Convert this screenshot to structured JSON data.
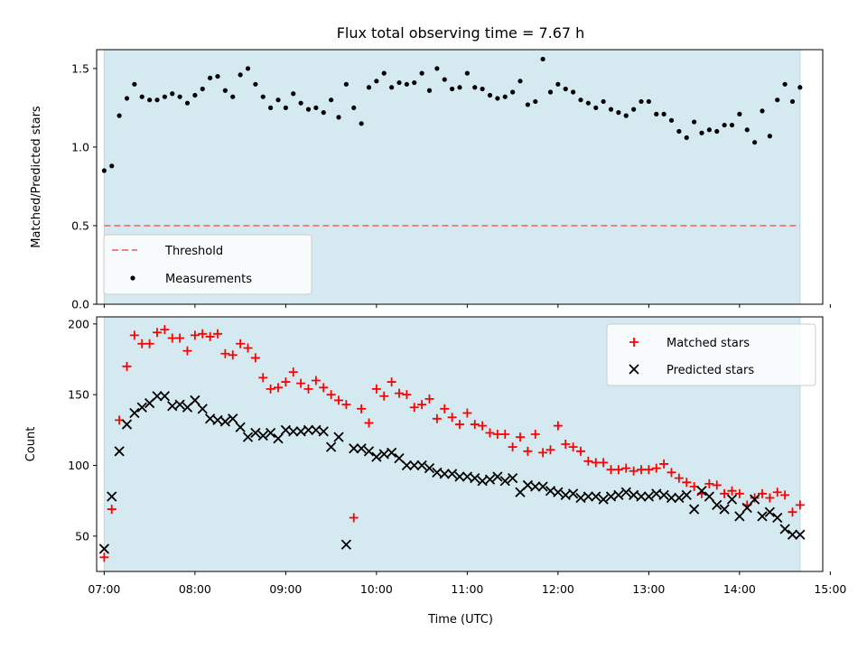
{
  "chart_data": [
    {
      "type": "scatter",
      "title": "Flux total observing time = 7.67 h",
      "xlabel": "",
      "ylabel": "Matched/Predicted stars",
      "xlim": [
        "06:55",
        "14:55"
      ],
      "ylim": [
        0,
        1.62
      ],
      "yticks": [
        "0.0",
        "0.5",
        "1.0",
        "1.5"
      ],
      "shaded_span": [
        "07:00",
        "14:40"
      ],
      "shade_color": "#d4eaf0",
      "legend_position": "lower-left",
      "threshold": {
        "name": "Threshold",
        "value": 0.5,
        "color": "#f08080",
        "style": "dashed"
      },
      "series": [
        {
          "name": "Measurements",
          "color": "#000000",
          "marker": "dot",
          "x": [
            "07:00",
            "07:05",
            "07:10",
            "07:15",
            "07:20",
            "07:25",
            "07:30",
            "07:35",
            "07:40",
            "07:45",
            "07:50",
            "07:55",
            "08:00",
            "08:05",
            "08:10",
            "08:15",
            "08:20",
            "08:25",
            "08:30",
            "08:35",
            "08:40",
            "08:45",
            "08:50",
            "08:55",
            "09:00",
            "09:05",
            "09:10",
            "09:15",
            "09:20",
            "09:25",
            "09:30",
            "09:35",
            "09:40",
            "09:45",
            "09:50",
            "09:55",
            "10:00",
            "10:05",
            "10:10",
            "10:15",
            "10:20",
            "10:25",
            "10:30",
            "10:35",
            "10:40",
            "10:45",
            "10:50",
            "10:55",
            "11:00",
            "11:05",
            "11:10",
            "11:15",
            "11:20",
            "11:25",
            "11:30",
            "11:35",
            "11:40",
            "11:45",
            "11:50",
            "11:55",
            "12:00",
            "12:05",
            "12:10",
            "12:15",
            "12:20",
            "12:25",
            "12:30",
            "12:35",
            "12:40",
            "12:45",
            "12:50",
            "12:55",
            "13:00",
            "13:05",
            "13:10",
            "13:15",
            "13:20",
            "13:25",
            "13:30",
            "13:35",
            "13:40",
            "13:45",
            "13:50",
            "13:55",
            "14:00",
            "14:05",
            "14:10",
            "14:15",
            "14:20",
            "14:25",
            "14:30",
            "14:35",
            "14:40"
          ],
          "y": [
            0.85,
            0.88,
            1.2,
            1.31,
            1.4,
            1.32,
            1.3,
            1.3,
            1.32,
            1.34,
            1.32,
            1.28,
            1.33,
            1.37,
            1.44,
            1.45,
            1.36,
            1.32,
            1.46,
            1.5,
            1.4,
            1.32,
            1.25,
            1.3,
            1.25,
            1.34,
            1.28,
            1.24,
            1.25,
            1.22,
            1.3,
            1.19,
            1.4,
            1.25,
            1.15,
            1.38,
            1.42,
            1.47,
            1.38,
            1.41,
            1.4,
            1.41,
            1.47,
            1.36,
            1.5,
            1.43,
            1.37,
            1.38,
            1.47,
            1.38,
            1.37,
            1.33,
            1.31,
            1.32,
            1.35,
            1.42,
            1.27,
            1.29,
            1.56,
            1.35,
            1.4,
            1.37,
            1.35,
            1.3,
            1.28,
            1.25,
            1.29,
            1.24,
            1.22,
            1.2,
            1.24,
            1.29,
            1.29,
            1.21,
            1.21,
            1.17,
            1.1,
            1.06,
            1.16,
            1.09,
            1.11,
            1.1,
            1.14,
            1.14,
            1.21,
            1.11,
            1.03,
            1.23,
            1.07,
            1.3,
            1.4,
            1.29,
            1.38
          ]
        }
      ]
    },
    {
      "type": "scatter",
      "title": "",
      "xlabel": "Time (UTC)",
      "ylabel": "Count",
      "xlim": [
        "06:55",
        "14:55"
      ],
      "ylim": [
        25,
        205
      ],
      "yticks": [
        "50",
        "100",
        "150",
        "200"
      ],
      "xticks": [
        "07:00",
        "08:00",
        "09:00",
        "10:00",
        "11:00",
        "12:00",
        "13:00",
        "14:00",
        "15:00"
      ],
      "shaded_span": [
        "07:00",
        "14:40"
      ],
      "shade_color": "#d4eaf0",
      "legend_position": "upper-right",
      "series": [
        {
          "name": "Matched stars",
          "color": "#ff0000",
          "marker": "plus",
          "x": [
            "07:00",
            "07:05",
            "07:10",
            "07:15",
            "07:20",
            "07:25",
            "07:30",
            "07:35",
            "07:40",
            "07:45",
            "07:50",
            "07:55",
            "08:00",
            "08:05",
            "08:10",
            "08:15",
            "08:20",
            "08:25",
            "08:30",
            "08:35",
            "08:40",
            "08:45",
            "08:50",
            "08:55",
            "09:00",
            "09:05",
            "09:10",
            "09:15",
            "09:20",
            "09:25",
            "09:30",
            "09:35",
            "09:40",
            "09:45",
            "09:50",
            "09:55",
            "10:00",
            "10:05",
            "10:10",
            "10:15",
            "10:20",
            "10:25",
            "10:30",
            "10:35",
            "10:40",
            "10:45",
            "10:50",
            "10:55",
            "11:00",
            "11:05",
            "11:10",
            "11:15",
            "11:20",
            "11:25",
            "11:30",
            "11:35",
            "11:40",
            "11:45",
            "11:50",
            "11:55",
            "12:00",
            "12:05",
            "12:10",
            "12:15",
            "12:20",
            "12:25",
            "12:30",
            "12:35",
            "12:40",
            "12:45",
            "12:50",
            "12:55",
            "13:00",
            "13:05",
            "13:10",
            "13:15",
            "13:20",
            "13:25",
            "13:30",
            "13:35",
            "13:40",
            "13:45",
            "13:50",
            "13:55",
            "14:00",
            "14:05",
            "14:10",
            "14:15",
            "14:20",
            "14:25",
            "14:30",
            "14:35",
            "14:40"
          ],
          "y": [
            35,
            69,
            132,
            170,
            192,
            186,
            186,
            194,
            196,
            190,
            190,
            181,
            192,
            193,
            191,
            193,
            179,
            178,
            186,
            183,
            176,
            162,
            154,
            155,
            159,
            166,
            158,
            154,
            160,
            155,
            150,
            146,
            143,
            63,
            140,
            130,
            154,
            149,
            159,
            151,
            150,
            141,
            143,
            147,
            133,
            140,
            134,
            129,
            137,
            129,
            128,
            123,
            122,
            122,
            113,
            120,
            110,
            122,
            109,
            111,
            128,
            115,
            113,
            110,
            103,
            102,
            102,
            97,
            97,
            98,
            96,
            97,
            97,
            98,
            101,
            95,
            91,
            88,
            85,
            80,
            87,
            86,
            80,
            82,
            80,
            72,
            77,
            80,
            77,
            81,
            79,
            67,
            72
          ]
        },
        {
          "name": "Predicted stars",
          "color": "#000000",
          "marker": "x",
          "x": [
            "07:00",
            "07:05",
            "07:10",
            "07:15",
            "07:20",
            "07:25",
            "07:30",
            "07:35",
            "07:40",
            "07:45",
            "07:50",
            "07:55",
            "08:00",
            "08:05",
            "08:10",
            "08:15",
            "08:20",
            "08:25",
            "08:30",
            "08:35",
            "08:40",
            "08:45",
            "08:50",
            "08:55",
            "09:00",
            "09:05",
            "09:10",
            "09:15",
            "09:20",
            "09:25",
            "09:30",
            "09:35",
            "09:40",
            "09:45",
            "09:50",
            "09:55",
            "10:00",
            "10:05",
            "10:10",
            "10:15",
            "10:20",
            "10:25",
            "10:30",
            "10:35",
            "10:40",
            "10:45",
            "10:50",
            "10:55",
            "11:00",
            "11:05",
            "11:10",
            "11:15",
            "11:20",
            "11:25",
            "11:30",
            "11:35",
            "11:40",
            "11:45",
            "11:50",
            "11:55",
            "12:00",
            "12:05",
            "12:10",
            "12:15",
            "12:20",
            "12:25",
            "12:30",
            "12:35",
            "12:40",
            "12:45",
            "12:50",
            "12:55",
            "13:00",
            "13:05",
            "13:10",
            "13:15",
            "13:20",
            "13:25",
            "13:30",
            "13:35",
            "13:40",
            "13:45",
            "13:50",
            "13:55",
            "14:00",
            "14:05",
            "14:10",
            "14:15",
            "14:20",
            "14:25",
            "14:30",
            "14:35",
            "14:40"
          ],
          "y": [
            41,
            78,
            110,
            129,
            137,
            141,
            144,
            149,
            149,
            142,
            143,
            141,
            146,
            140,
            133,
            132,
            131,
            133,
            127,
            120,
            123,
            121,
            123,
            119,
            125,
            124,
            124,
            125,
            125,
            124,
            113,
            120,
            44,
            112,
            112,
            110,
            106,
            108,
            109,
            105,
            100,
            100,
            100,
            98,
            95,
            94,
            94,
            92,
            92,
            91,
            89,
            90,
            92,
            89,
            91,
            81,
            86,
            85,
            85,
            82,
            81,
            79,
            80,
            77,
            78,
            78,
            76,
            78,
            79,
            81,
            79,
            78,
            78,
            80,
            79,
            77,
            77,
            79,
            69,
            82,
            78,
            72,
            69,
            76,
            64,
            70,
            76,
            64,
            67,
            63,
            55,
            51,
            51
          ]
        }
      ]
    }
  ]
}
